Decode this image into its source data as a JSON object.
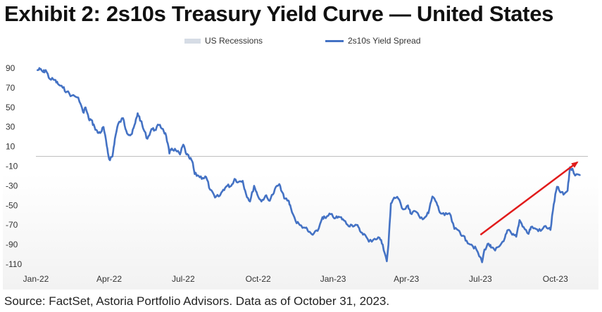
{
  "title": "Exhibit 2: 2s10s Treasury Yield Curve — United States",
  "source": "Source: FactSet, Astoria Portfolio Advisors. Data as of October 31, 2023.",
  "legend": {
    "recessions": "US Recessions",
    "spread": "2s10s Yield Spread"
  },
  "colors": {
    "line": "#4472c4",
    "arrow": "#e11b1b",
    "zero_line": "#bfbfbf",
    "recession": "#d6dce5"
  },
  "chart_data": {
    "type": "line",
    "title": "2s10s Treasury Yield Curve — United States",
    "xlabel": "",
    "ylabel": "",
    "ylim": [
      -110,
      90
    ],
    "yticks": [
      90,
      70,
      50,
      30,
      10,
      -10,
      -30,
      -50,
      -70,
      -90,
      -110
    ],
    "xticks": [
      "Jan-22",
      "Apr-22",
      "Jul-22",
      "Oct-22",
      "Jan-23",
      "Apr-23",
      "Jul-23",
      "Oct-23"
    ],
    "grid": false,
    "legend_position": "top-center",
    "reference_line": 0,
    "series": [
      {
        "name": "2s10s Yield Spread",
        "points": [
          [
            "2022-01-03",
            88
          ],
          [
            "2022-01-06",
            89
          ],
          [
            "2022-01-10",
            86
          ],
          [
            "2022-01-13",
            88
          ],
          [
            "2022-01-18",
            79
          ],
          [
            "2022-01-24",
            78
          ],
          [
            "2022-01-28",
            74
          ],
          [
            "2022-02-03",
            70
          ],
          [
            "2022-02-08",
            66
          ],
          [
            "2022-02-14",
            62
          ],
          [
            "2022-02-22",
            60
          ],
          [
            "2022-02-28",
            45
          ],
          [
            "2022-03-03",
            50
          ],
          [
            "2022-03-07",
            38
          ],
          [
            "2022-03-10",
            37
          ],
          [
            "2022-03-14",
            30
          ],
          [
            "2022-03-18",
            24
          ],
          [
            "2022-03-22",
            25
          ],
          [
            "2022-03-25",
            30
          ],
          [
            "2022-03-29",
            11
          ],
          [
            "2022-04-01",
            -3
          ],
          [
            "2022-04-05",
            0
          ],
          [
            "2022-04-08",
            18
          ],
          [
            "2022-04-12",
            33
          ],
          [
            "2022-04-18",
            39
          ],
          [
            "2022-04-22",
            26
          ],
          [
            "2022-04-26",
            22
          ],
          [
            "2022-04-29",
            23
          ],
          [
            "2022-05-03",
            34
          ],
          [
            "2022-05-06",
            44
          ],
          [
            "2022-05-10",
            36
          ],
          [
            "2022-05-13",
            28
          ],
          [
            "2022-05-18",
            18
          ],
          [
            "2022-05-23",
            28
          ],
          [
            "2022-05-27",
            27
          ],
          [
            "2022-06-01",
            32
          ],
          [
            "2022-06-06",
            28
          ],
          [
            "2022-06-10",
            21
          ],
          [
            "2022-06-14",
            3
          ],
          [
            "2022-06-17",
            8
          ],
          [
            "2022-06-22",
            6
          ],
          [
            "2022-06-27",
            2
          ],
          [
            "2022-07-01",
            12
          ],
          [
            "2022-07-05",
            2
          ],
          [
            "2022-07-08",
            -1
          ],
          [
            "2022-07-12",
            -5
          ],
          [
            "2022-07-15",
            -18
          ],
          [
            "2022-07-20",
            -20
          ],
          [
            "2022-07-25",
            -22
          ],
          [
            "2022-07-29",
            -21
          ],
          [
            "2022-08-03",
            -34
          ],
          [
            "2022-08-09",
            -42
          ],
          [
            "2022-08-15",
            -40
          ],
          [
            "2022-08-19",
            -34
          ],
          [
            "2022-08-24",
            -30
          ],
          [
            "2022-08-29",
            -30
          ],
          [
            "2022-09-02",
            -23
          ],
          [
            "2022-09-07",
            -26
          ],
          [
            "2022-09-12",
            -25
          ],
          [
            "2022-09-16",
            -38
          ],
          [
            "2022-09-21",
            -46
          ],
          [
            "2022-09-26",
            -30
          ],
          [
            "2022-09-30",
            -39
          ],
          [
            "2022-10-05",
            -46
          ],
          [
            "2022-10-10",
            -40
          ],
          [
            "2022-10-14",
            -45
          ],
          [
            "2022-10-19",
            -39
          ],
          [
            "2022-10-24",
            -30
          ],
          [
            "2022-10-28",
            -30
          ],
          [
            "2022-11-02",
            -43
          ],
          [
            "2022-11-07",
            -45
          ],
          [
            "2022-11-10",
            -52
          ],
          [
            "2022-11-16",
            -66
          ],
          [
            "2022-11-21",
            -70
          ],
          [
            "2022-11-28",
            -73
          ],
          [
            "2022-12-02",
            -77
          ],
          [
            "2022-12-07",
            -80
          ],
          [
            "2022-12-13",
            -76
          ],
          [
            "2022-12-19",
            -62
          ],
          [
            "2022-12-23",
            -63
          ],
          [
            "2022-12-29",
            -59
          ],
          [
            "2023-01-04",
            -63
          ],
          [
            "2023-01-09",
            -62
          ],
          [
            "2023-01-13",
            -64
          ],
          [
            "2023-01-19",
            -70
          ],
          [
            "2023-01-24",
            -70
          ],
          [
            "2023-01-30",
            -70
          ],
          [
            "2023-02-03",
            -76
          ],
          [
            "2023-02-08",
            -79
          ],
          [
            "2023-02-14",
            -87
          ],
          [
            "2023-02-21",
            -84
          ],
          [
            "2023-02-27",
            -83
          ],
          [
            "2023-03-03",
            -90
          ],
          [
            "2023-03-08",
            -107
          ],
          [
            "2023-03-10",
            -90
          ],
          [
            "2023-03-13",
            -48
          ],
          [
            "2023-03-17",
            -42
          ],
          [
            "2023-03-22",
            -43
          ],
          [
            "2023-03-28",
            -54
          ],
          [
            "2023-04-03",
            -50
          ],
          [
            "2023-04-06",
            -58
          ],
          [
            "2023-04-12",
            -56
          ],
          [
            "2023-04-18",
            -63
          ],
          [
            "2023-04-24",
            -62
          ],
          [
            "2023-04-28",
            -58
          ],
          [
            "2023-05-03",
            -41
          ],
          [
            "2023-05-08",
            -47
          ],
          [
            "2023-05-12",
            -57
          ],
          [
            "2023-05-18",
            -60
          ],
          [
            "2023-05-24",
            -58
          ],
          [
            "2023-05-30",
            -74
          ],
          [
            "2023-06-05",
            -76
          ],
          [
            "2023-06-09",
            -81
          ],
          [
            "2023-06-14",
            -86
          ],
          [
            "2023-06-20",
            -90
          ],
          [
            "2023-06-26",
            -95
          ],
          [
            "2023-07-03",
            -108
          ],
          [
            "2023-07-06",
            -95
          ],
          [
            "2023-07-11",
            -89
          ],
          [
            "2023-07-14",
            -93
          ],
          [
            "2023-07-19",
            -96
          ],
          [
            "2023-07-25",
            -91
          ],
          [
            "2023-07-31",
            -83
          ],
          [
            "2023-08-04",
            -75
          ],
          [
            "2023-08-09",
            -80
          ],
          [
            "2023-08-14",
            -82
          ],
          [
            "2023-08-18",
            -65
          ],
          [
            "2023-08-23",
            -72
          ],
          [
            "2023-08-29",
            -79
          ],
          [
            "2023-09-01",
            -72
          ],
          [
            "2023-09-07",
            -74
          ],
          [
            "2023-09-13",
            -76
          ],
          [
            "2023-09-19",
            -71
          ],
          [
            "2023-09-25",
            -75
          ],
          [
            "2023-09-29",
            -49
          ],
          [
            "2023-10-03",
            -31
          ],
          [
            "2023-10-06",
            -35
          ],
          [
            "2023-10-11",
            -39
          ],
          [
            "2023-10-16",
            -35
          ],
          [
            "2023-10-19",
            -11
          ],
          [
            "2023-10-23",
            -15
          ],
          [
            "2023-10-26",
            -19
          ],
          [
            "2023-10-31",
            -19
          ]
        ]
      }
    ],
    "annotations": [
      {
        "type": "arrow",
        "from": [
          "2023-07-01",
          -80
        ],
        "to": [
          "2023-10-28",
          -6
        ]
      }
    ]
  }
}
